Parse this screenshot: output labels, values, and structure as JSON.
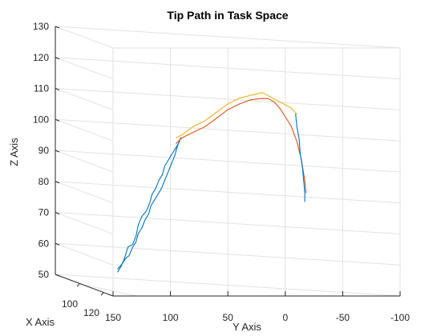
{
  "chart_data": {
    "type": "line3d",
    "title": "Tip Path in Task Space",
    "xlabel": "X Axis",
    "ylabel": "Y Axis",
    "zlabel": "Z Axis",
    "z_ticks": [
      "50",
      "60",
      "70",
      "80",
      "90",
      "100",
      "110",
      "120",
      "130"
    ],
    "y_ticks": [
      "150",
      "100",
      "50",
      "0",
      "-50",
      "-100"
    ],
    "x_ticks": [
      "100",
      "120"
    ],
    "zlim": [
      50,
      130
    ],
    "ylim": [
      -100,
      150
    ],
    "grid": true,
    "colors": {
      "series1": "#0072bd",
      "series2": "#d95319",
      "series3": "#edb120"
    },
    "series": [
      {
        "color": "#0072bd",
        "points": [
          [
            146,
            51
          ],
          [
            143,
            53
          ],
          [
            140,
            56
          ],
          [
            137,
            60
          ],
          [
            133,
            61
          ],
          [
            130,
            64
          ],
          [
            128,
            68
          ],
          [
            125,
            71
          ],
          [
            121,
            73
          ],
          [
            118,
            76
          ],
          [
            116,
            79
          ],
          [
            113,
            81
          ],
          [
            110,
            84
          ],
          [
            107,
            86
          ],
          [
            105,
            89
          ],
          [
            102,
            91
          ],
          [
            99,
            93
          ],
          [
            96,
            95
          ],
          [
            93,
            97
          ],
          [
            91,
            99
          ]
        ]
      },
      {
        "color": "#0072bd",
        "points": [
          [
            146,
            52
          ],
          [
            142,
            54
          ],
          [
            139,
            56
          ],
          [
            136,
            57
          ],
          [
            133,
            60
          ],
          [
            130,
            62
          ],
          [
            128,
            65
          ],
          [
            125,
            67
          ],
          [
            122,
            70
          ],
          [
            119,
            72
          ],
          [
            117,
            75
          ],
          [
            114,
            77
          ],
          [
            111,
            79
          ],
          [
            108,
            81
          ],
          [
            105,
            84
          ],
          [
            102,
            87
          ],
          [
            99,
            90
          ],
          [
            96,
            93
          ],
          [
            94,
            96
          ],
          [
            92,
            98
          ]
        ]
      },
      {
        "color": "#d95319",
        "points": [
          [
            95,
            97
          ],
          [
            90,
            99
          ],
          [
            80,
            101
          ],
          [
            70,
            103
          ],
          [
            60,
            106
          ],
          [
            50,
            109
          ],
          [
            40,
            111
          ],
          [
            30,
            112.5
          ],
          [
            20,
            113
          ],
          [
            15,
            113
          ],
          [
            10,
            112
          ],
          [
            5,
            110
          ],
          [
            0,
            107
          ],
          [
            -5,
            104
          ],
          [
            -10,
            99
          ],
          [
            -14,
            93
          ],
          [
            -17,
            86
          ],
          [
            -18,
            82
          ]
        ]
      },
      {
        "color": "#edb120",
        "points": [
          [
            95,
            99
          ],
          [
            90,
            100
          ],
          [
            80,
            103
          ],
          [
            70,
            105
          ],
          [
            60,
            108
          ],
          [
            50,
            111
          ],
          [
            40,
            113
          ],
          [
            30,
            114
          ],
          [
            20,
            115
          ],
          [
            15,
            114
          ],
          [
            10,
            113
          ],
          [
            5,
            112
          ],
          [
            -5,
            110
          ],
          [
            -10,
            108
          ]
        ]
      },
      {
        "color": "#0072bd",
        "points": [
          [
            -9,
            108
          ],
          [
            -10,
            104
          ],
          [
            -12,
            100
          ],
          [
            -13,
            95
          ],
          [
            -15,
            90
          ],
          [
            -16,
            86
          ],
          [
            -17,
            82
          ],
          [
            -17,
            79
          ]
        ]
      }
    ]
  }
}
